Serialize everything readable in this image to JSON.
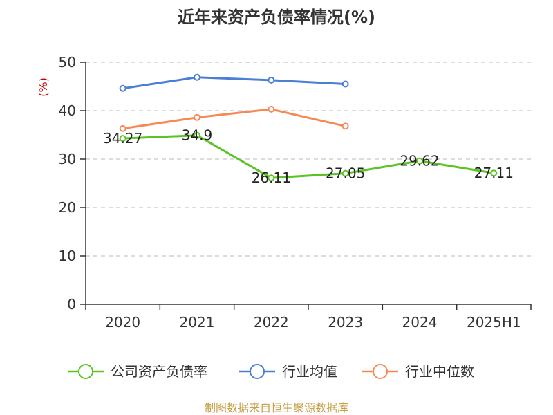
{
  "chart_data": {
    "type": "line",
    "title": "近年来资产负债率情况(%)",
    "ylabel": "(%)",
    "xlabel": "",
    "categories": [
      "2020",
      "2021",
      "2022",
      "2023",
      "2024",
      "2025H1"
    ],
    "ylim": [
      0,
      50
    ],
    "yticks": [
      0,
      10,
      20,
      30,
      40,
      50
    ],
    "grid": true,
    "legend_position": "bottom",
    "series": [
      {
        "name": "公司资产负债率",
        "color": "#5bc424",
        "values": [
          34.27,
          34.9,
          26.11,
          27.05,
          29.62,
          27.11
        ],
        "labels": [
          "34.27",
          "34.9",
          "26.11",
          "27.05",
          "29.62",
          "27.11"
        ]
      },
      {
        "name": "行业均值",
        "color": "#4a7fd4",
        "values": [
          44.6,
          46.9,
          46.3,
          45.5,
          null,
          null
        ]
      },
      {
        "name": "行业中位数",
        "color": "#f58a55",
        "values": [
          36.3,
          38.6,
          40.3,
          36.8,
          null,
          null
        ]
      }
    ]
  },
  "footer": {
    "source": "制图数据来自恒生聚源数据库"
  }
}
